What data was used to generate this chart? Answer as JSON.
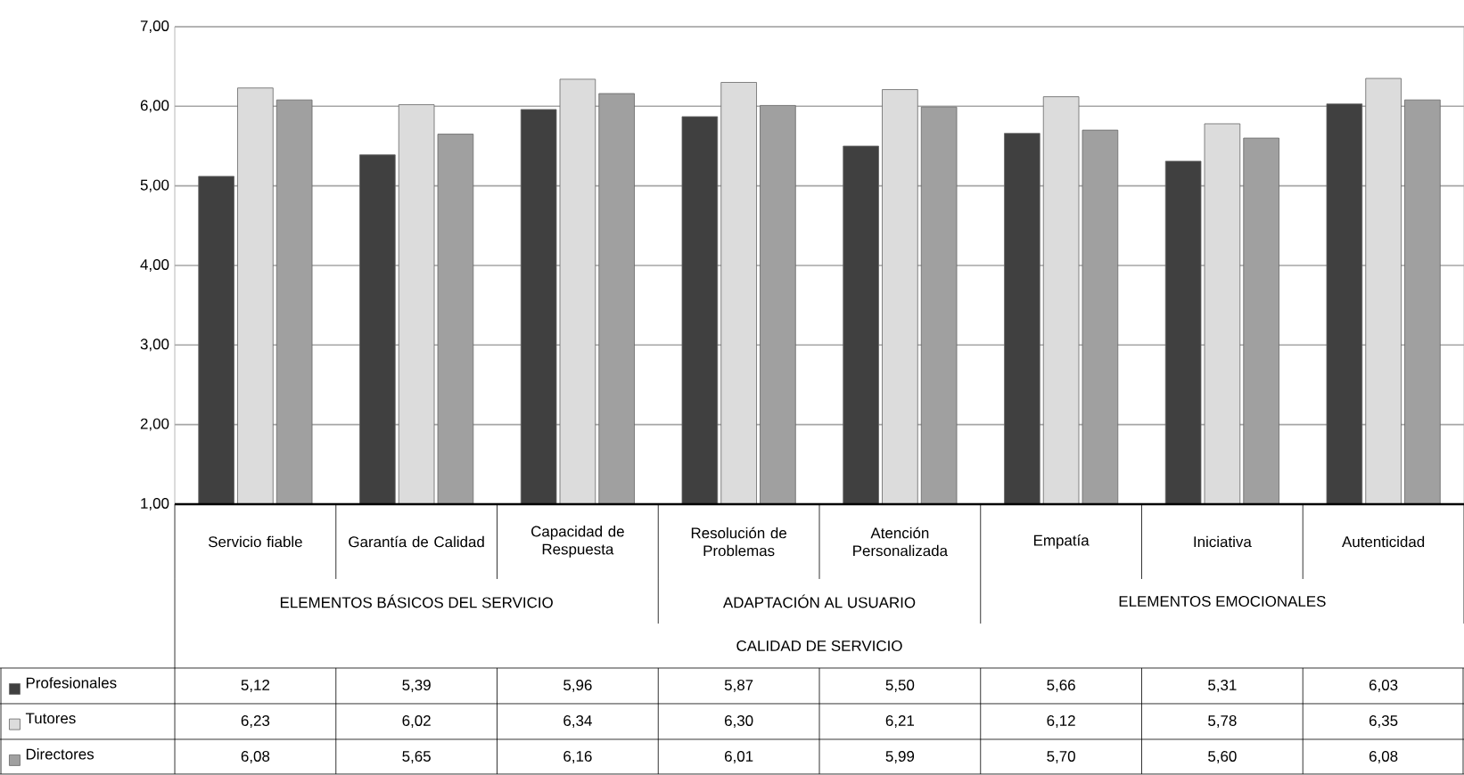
{
  "chart_data": {
    "type": "bar",
    "categories": [
      "Servicio fiable",
      "Garantía de Calidad",
      "Capacidad de Respuesta",
      "Resolución de Problemas",
      "Atención Personalizada",
      "Empatía",
      "Iniciativa",
      "Autenticidad"
    ],
    "series": [
      {
        "name": "Profesionales",
        "color": "#404040",
        "values": [
          5.12,
          5.39,
          5.96,
          5.87,
          5.5,
          5.66,
          5.31,
          6.03
        ],
        "value_labels": [
          "5,12",
          "5,39",
          "5,96",
          "5,87",
          "5,50",
          "5,66",
          "5,31",
          "6,03"
        ]
      },
      {
        "name": "Tutores",
        "color": "#dcdcdc",
        "values": [
          6.23,
          6.02,
          6.34,
          6.3,
          6.21,
          6.12,
          5.78,
          6.35
        ],
        "value_labels": [
          "6,23",
          "6,02",
          "6,34",
          "6,30",
          "6,21",
          "6,12",
          "5,78",
          "6,35"
        ]
      },
      {
        "name": "Directores",
        "color": "#a0a0a0",
        "values": [
          6.08,
          5.65,
          6.16,
          6.01,
          5.99,
          5.7,
          5.6,
          6.08
        ],
        "value_labels": [
          "6,08",
          "5,65",
          "6,16",
          "6,01",
          "5,99",
          "5,70",
          "5,60",
          "6,08"
        ]
      }
    ],
    "ylim": [
      1,
      7
    ],
    "yticks": [
      {
        "value": 1,
        "label": "1,00"
      },
      {
        "value": 2,
        "label": "2,00"
      },
      {
        "value": 3,
        "label": "3,00"
      },
      {
        "value": 4,
        "label": "4,00"
      },
      {
        "value": 5,
        "label": "5,00"
      },
      {
        "value": 6,
        "label": "6,00"
      },
      {
        "value": 7,
        "label": "7,00"
      }
    ],
    "grid": "y",
    "legend": "bottom left",
    "annotations": [
      "ELEMENTOS  BÁSICOS DEL SERVICIO",
      "ADAPTACIÓN AL USUARIO",
      "ELEMENTOS  EMOCIONALES",
      "CALIDAD DE SERVICIO"
    ]
  }
}
